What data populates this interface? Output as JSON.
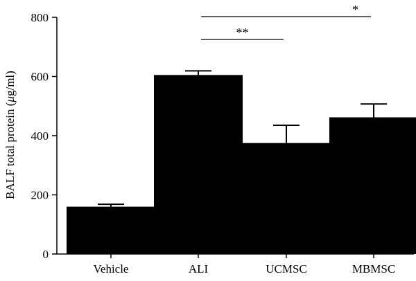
{
  "chart_data": {
    "type": "bar",
    "title": "",
    "xlabel": "",
    "ylabel": "BALF total protein (μg/ml)",
    "ylabel_parts": {
      "prefix": "BALF total protein (",
      "unit_symbol": "μ",
      "suffix": "g/ml)"
    },
    "categories": [
      "Vehicle",
      "ALI",
      "UCMSC",
      "MBMSC"
    ],
    "values": [
      160,
      605,
      375,
      462
    ],
    "error": [
      8,
      14,
      60,
      45
    ],
    "ylim": [
      0,
      800
    ],
    "yticks": [
      0,
      200,
      400,
      600,
      800
    ],
    "ytick_labels": [
      "0",
      "200",
      "400",
      "600",
      "800"
    ],
    "grid": false,
    "bar_color": "#000000",
    "significance": [
      {
        "from": "ALI",
        "to": "UCMSC",
        "label": "**"
      },
      {
        "from": "ALI",
        "to": "MBMSC",
        "label": "*"
      }
    ]
  }
}
